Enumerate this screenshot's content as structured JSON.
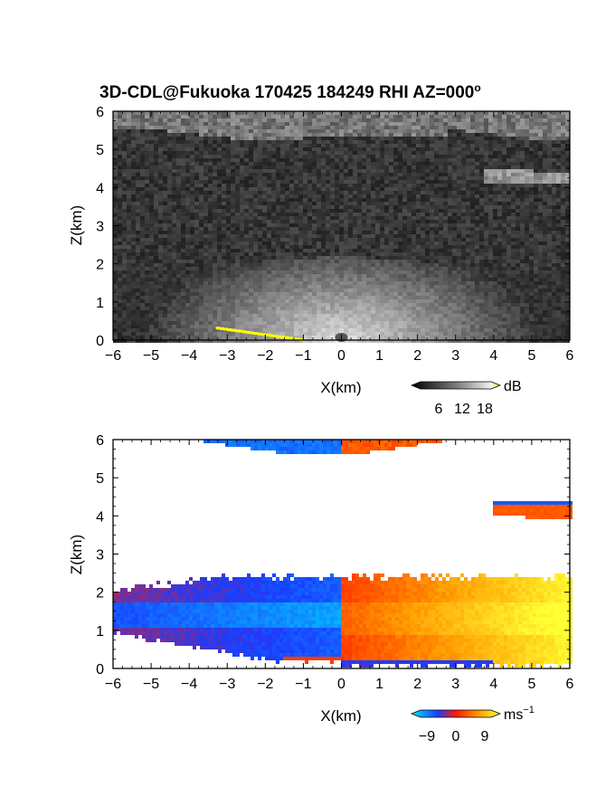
{
  "title": "3D-CDL@Fukuoka 170425 184249 RHI AZ=000",
  "title_superscript": "o",
  "chart_data": [
    {
      "type": "heatmap",
      "panel": "top",
      "xlabel": "X(km)",
      "ylabel": "Z(km)",
      "xlim": [
        -6,
        6
      ],
      "ylim": [
        0,
        6
      ],
      "xticks": [
        -6,
        -5,
        -4,
        -3,
        -2,
        -1,
        0,
        1,
        2,
        3,
        4,
        5,
        6
      ],
      "yticks": [
        0,
        1,
        2,
        3,
        4,
        5,
        6
      ],
      "colormap": "grayscale",
      "colorbar": {
        "unit": "dB",
        "ticks": [
          "6",
          "12",
          "18"
        ],
        "range": [
          0,
          22
        ]
      },
      "features": [
        {
          "name": "cloud-base-echo",
          "z_km": [
            5.4,
            6.0
          ],
          "value_db": 8
        },
        {
          "name": "upper-thin-layer",
          "x_km": [
            3.9,
            6.0
          ],
          "z_km": [
            4.1,
            4.5
          ],
          "value_db": 8
        },
        {
          "name": "boundary-layer-echo",
          "z_km": [
            0.0,
            2.2
          ],
          "peak_value_db": 18
        }
      ]
    },
    {
      "type": "heatmap",
      "panel": "bottom",
      "xlabel": "X(km)",
      "ylabel": "Z(km)",
      "xlim": [
        -6,
        6
      ],
      "ylim": [
        0,
        6
      ],
      "xticks": [
        -6,
        -5,
        -4,
        -3,
        -2,
        -1,
        0,
        1,
        2,
        3,
        4,
        5,
        6
      ],
      "yticks": [
        0,
        1,
        2,
        3,
        4,
        5,
        6
      ],
      "colormap": "diverging-blue-red-yellow",
      "colorbar": {
        "unit": "ms",
        "unit_superscript": "−1",
        "ticks": [
          "−9",
          "0",
          "9"
        ],
        "range": [
          -12,
          12
        ]
      },
      "features": [
        {
          "name": "negative-velocity-region",
          "x_km": [
            -6.0,
            0.0
          ],
          "z_km": [
            0.2,
            2.5
          ],
          "velocity_ms": -9
        },
        {
          "name": "positive-velocity-region",
          "x_km": [
            0.0,
            6.0
          ],
          "z_km": [
            0.1,
            2.5
          ],
          "velocity_ms": 9
        },
        {
          "name": "upper-cloud-negative",
          "x_km": [
            -6.0,
            0.0
          ],
          "z_km": [
            5.4,
            6.0
          ],
          "velocity_ms": -5
        },
        {
          "name": "upper-cloud-positive",
          "x_km": [
            0.0,
            3.0
          ],
          "z_km": [
            5.4,
            6.0
          ],
          "velocity_ms": 3
        },
        {
          "name": "thin-layer",
          "x_km": [
            4.0,
            6.0
          ],
          "z_km": [
            4.0,
            4.4
          ],
          "velocity_ms": 2
        }
      ]
    }
  ]
}
